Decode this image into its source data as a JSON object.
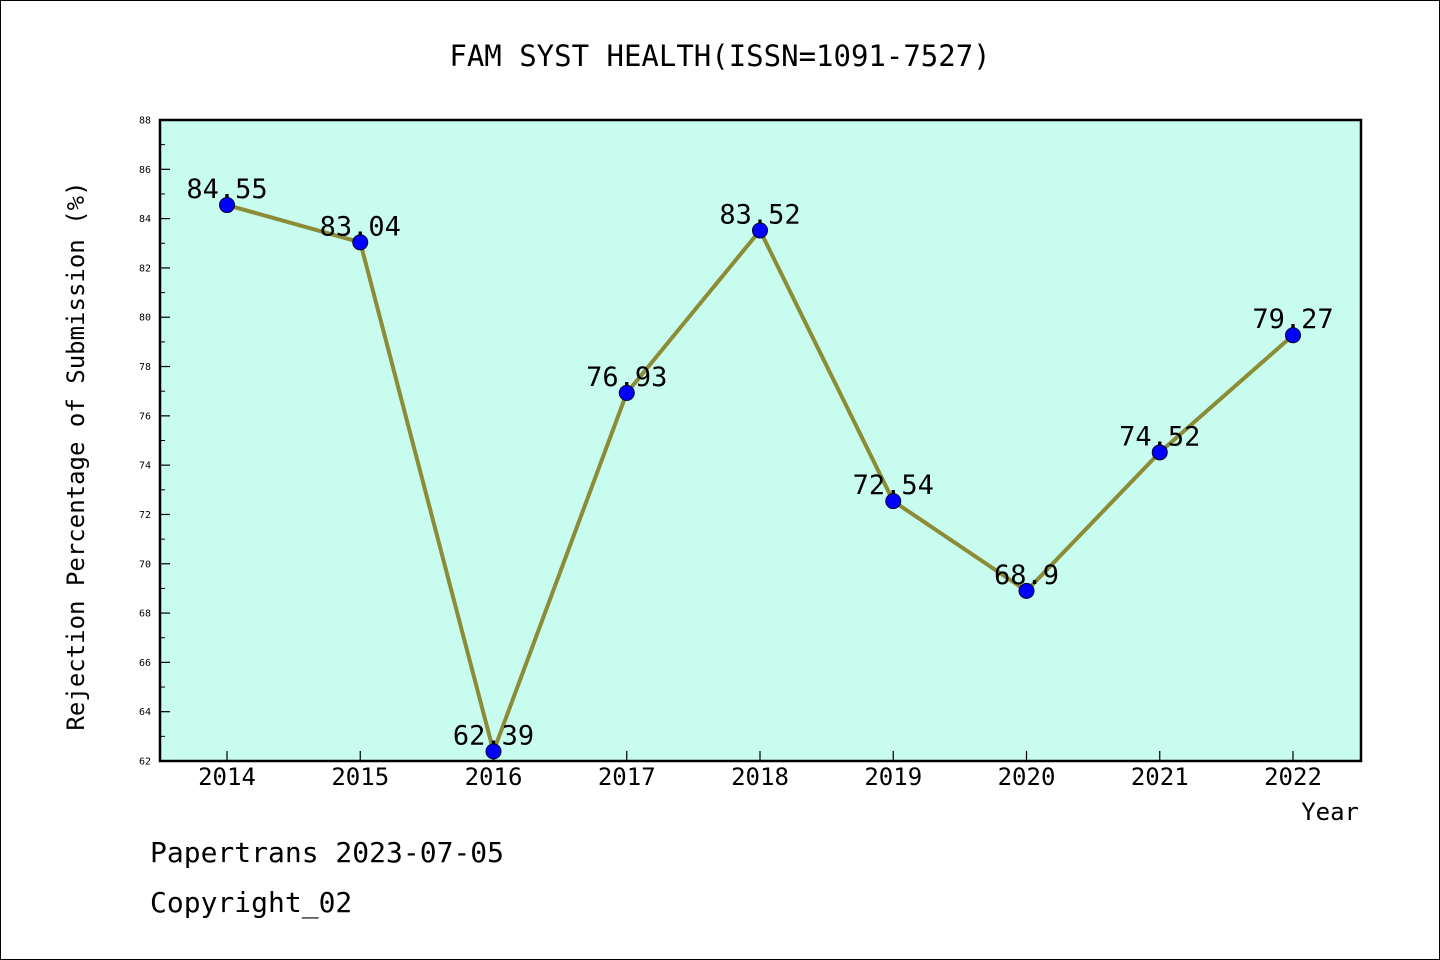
{
  "chart_data": {
    "type": "line",
    "title": "FAM SYST HEALTH(ISSN=1091-7527)",
    "xlabel": "Year",
    "ylabel": "Rejection Percentage of Submission (%)",
    "categories": [
      "2014",
      "2015",
      "2016",
      "2017",
      "2018",
      "2019",
      "2020",
      "2021",
      "2022"
    ],
    "values": [
      84.55,
      83.04,
      62.39,
      76.93,
      83.52,
      72.54,
      68.9,
      74.52,
      79.27
    ],
    "data_labels": [
      "84.55",
      "83.04",
      "62.39",
      "76.93",
      "83.52",
      "72.54",
      "68.9",
      "74.52",
      "79.27"
    ],
    "ylim": [
      62,
      88
    ],
    "y_ticks": [
      62,
      64,
      66,
      68,
      70,
      72,
      74,
      76,
      78,
      80,
      82,
      84,
      86,
      88
    ],
    "grid": false,
    "colors": {
      "plot_background": "#c8fcee",
      "line": "#8c8b36",
      "marker": "#0000ff"
    }
  },
  "footer": {
    "source": "Papertrans 2023-07-05",
    "copyright": "Copyright_02"
  }
}
